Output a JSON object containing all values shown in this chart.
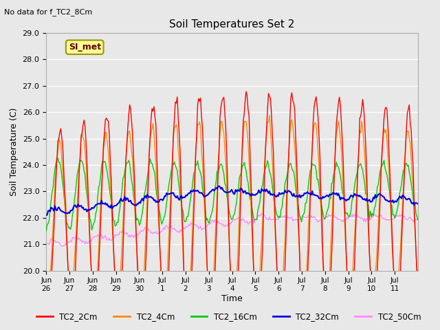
{
  "title": "Soil Temperatures Set 2",
  "subtitle": "No data for f_TC2_8Cm",
  "ylabel": "Soil Temperature (C)",
  "xlabel": "Time",
  "ylim": [
    20.0,
    29.0
  ],
  "background_color": "#e8e8e8",
  "plot_bg_color": "#e8e8e8",
  "grid_color": "#ffffff",
  "annotation_text": "SI_met",
  "annotation_bg": "#ffff99",
  "annotation_border": "#999900",
  "series_colors": {
    "TC2_2Cm": "#ff0000",
    "TC2_4Cm": "#ff8800",
    "TC2_16Cm": "#00cc00",
    "TC2_32Cm": "#0000dd",
    "TC2_50Cm": "#ff88ff"
  },
  "xtick_labels": [
    "Jun\n26",
    "Jun\n27",
    "Jun\n28",
    "Jun\n29",
    "Jun\n30",
    "Jul\n1",
    "Jul\n2",
    "Jul\n3",
    "Jul\n4",
    "Jul\n5",
    "Jul\n6",
    "Jul\n7",
    "Jul\n8",
    "Jul\n9",
    "Jul\n10",
    "Jul\n11"
  ],
  "ytick_labels": [
    "20.0",
    "21.0",
    "22.0",
    "23.0",
    "24.0",
    "25.0",
    "26.0",
    "27.0",
    "28.0",
    "29.0"
  ],
  "ytick_vals": [
    20.0,
    21.0,
    22.0,
    23.0,
    24.0,
    25.0,
    26.0,
    27.0,
    28.0,
    29.0
  ],
  "n_points": 384,
  "days": 16
}
